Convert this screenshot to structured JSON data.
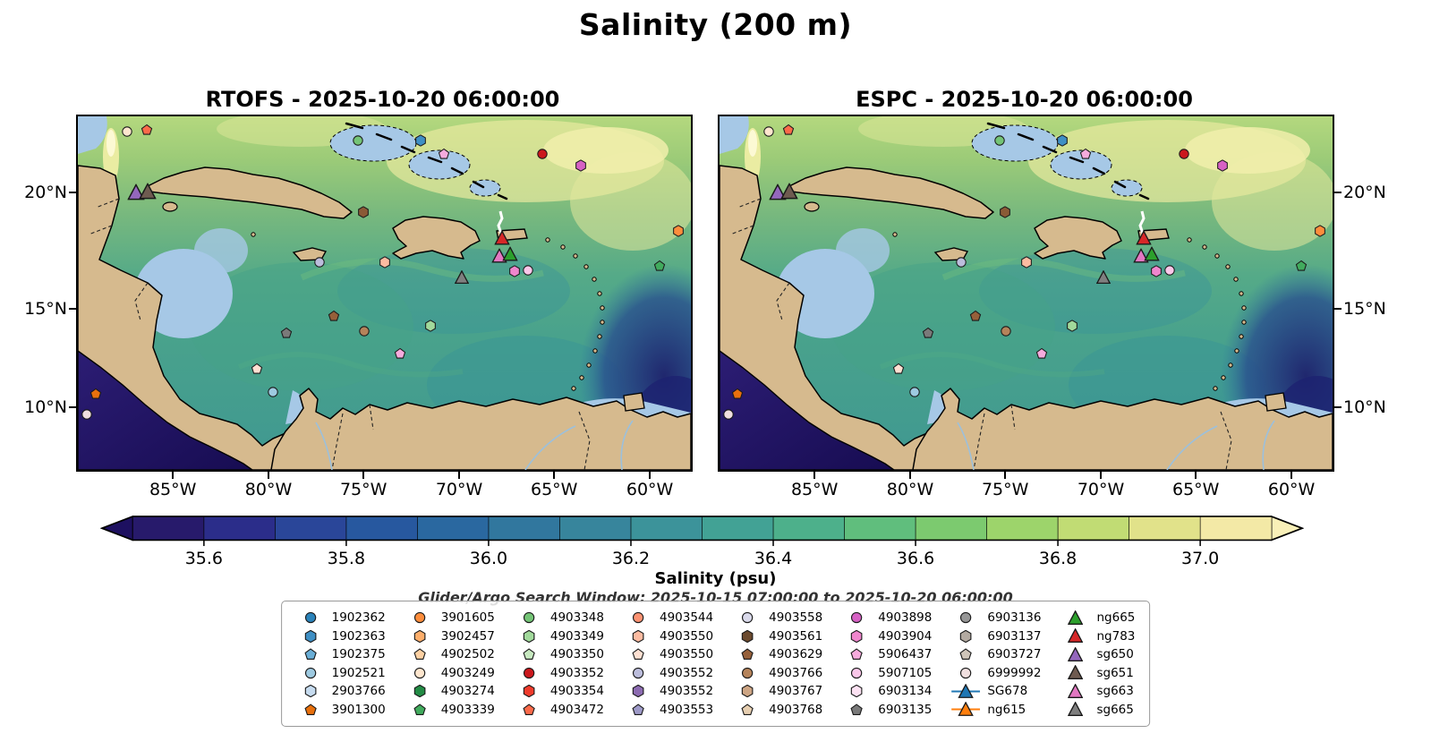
{
  "title": "Salinity (200 m)",
  "panels": [
    {
      "id": "rtofs",
      "title": "RTOFS - 2025-10-20 06:00:00"
    },
    {
      "id": "espc",
      "title": "ESPC - 2025-10-20 06:00:00"
    }
  ],
  "axes": {
    "lat_ticks": [
      {
        "label": "20°N",
        "pos": 21.5
      },
      {
        "label": "15°N",
        "pos": 54.4
      },
      {
        "label": "10°N",
        "pos": 82.3
      }
    ],
    "lon_ticks": [
      {
        "label": "85°W",
        "pos": 15.5
      },
      {
        "label": "80°W",
        "pos": 31.1
      },
      {
        "label": "75°W",
        "pos": 46.6
      },
      {
        "label": "70°W",
        "pos": 62.2
      },
      {
        "label": "65°W",
        "pos": 77.7
      },
      {
        "label": "60°W",
        "pos": 93.3
      }
    ]
  },
  "colorbar": {
    "label": "Salinity (psu)",
    "min": 35.5,
    "max": 37.1,
    "tick_values": [
      35.6,
      35.8,
      36.0,
      36.2,
      36.4,
      36.6,
      36.8,
      37.0
    ],
    "tick_labels": [
      "35.6",
      "35.8",
      "36.0",
      "36.2",
      "36.4",
      "36.6",
      "36.8",
      "37.0"
    ],
    "segment_colors": [
      "#271a6b",
      "#2b2d8a",
      "#2a4699",
      "#27589f",
      "#2a68a0",
      "#31779e",
      "#37859c",
      "#3c939a",
      "#42a295",
      "#4db08b",
      "#60be7d",
      "#7cca6f",
      "#9dd46b",
      "#c1dc74",
      "#e1e28a",
      "#f3e9a6"
    ],
    "under_color": "#1d1060",
    "over_color": "#f9f0b8"
  },
  "search_window": "Glider/Argo Search Window: 2025-10-15 07:00:00 to 2025-10-20 06:00:00",
  "legend": {
    "entries": [
      {
        "label": "1902362",
        "shape": "circle",
        "color": "#2b83ba"
      },
      {
        "label": "1902363",
        "shape": "hexagon",
        "color": "#3f8fc4"
      },
      {
        "label": "1902375",
        "shape": "pentagon",
        "color": "#6aaed6"
      },
      {
        "label": "1902521",
        "shape": "circle",
        "color": "#9ecae1"
      },
      {
        "label": "2903766",
        "shape": "hexagon",
        "color": "#c6dbef"
      },
      {
        "label": "3901300",
        "shape": "pentagon",
        "color": "#e8700d"
      },
      {
        "label": "3901605",
        "shape": "circle",
        "color": "#fd8d3c"
      },
      {
        "label": "3902457",
        "shape": "hexagon",
        "color": "#fdae6b"
      },
      {
        "label": "4902502",
        "shape": "pentagon",
        "color": "#fdd0a2"
      },
      {
        "label": "4903249",
        "shape": "circle",
        "color": "#fee6ce"
      },
      {
        "label": "4903274",
        "shape": "hexagon",
        "color": "#238b45"
      },
      {
        "label": "4903339",
        "shape": "pentagon",
        "color": "#41ab5d"
      },
      {
        "label": "4903348",
        "shape": "circle",
        "color": "#74c476"
      },
      {
        "label": "4903349",
        "shape": "hexagon",
        "color": "#a1d99b"
      },
      {
        "label": "4903350",
        "shape": "pentagon",
        "color": "#c7e9c0"
      },
      {
        "label": "4903352",
        "shape": "circle",
        "color": "#cb181d"
      },
      {
        "label": "4903354",
        "shape": "hexagon",
        "color": "#ef3b2c"
      },
      {
        "label": "4903472",
        "shape": "pentagon",
        "color": "#fb6a4a"
      },
      {
        "label": "4903544",
        "shape": "circle",
        "color": "#fc9272"
      },
      {
        "label": "4903550",
        "shape": "hexagon",
        "color": "#fcbba1"
      },
      {
        "label": "4903550",
        "shape": "pentagon",
        "color": "#fee0d2"
      },
      {
        "label": "4903552",
        "shape": "circle",
        "color": "#bcbddc"
      },
      {
        "label": "4903552",
        "shape": "hexagon",
        "color": "#8c6bb1"
      },
      {
        "label": "4903553",
        "shape": "pentagon",
        "color": "#9e9ac8"
      },
      {
        "label": "4903558",
        "shape": "circle",
        "color": "#dadaeb"
      },
      {
        "label": "4903561",
        "shape": "hexagon",
        "color": "#6b4a2e"
      },
      {
        "label": "4903629",
        "shape": "pentagon",
        "color": "#96603a"
      },
      {
        "label": "4903766",
        "shape": "circle",
        "color": "#b5835a"
      },
      {
        "label": "4903767",
        "shape": "hexagon",
        "color": "#cda584"
      },
      {
        "label": "4903768",
        "shape": "pentagon",
        "color": "#e7cfb1"
      },
      {
        "label": "4903898",
        "shape": "circle",
        "color": "#d661c4"
      },
      {
        "label": "4903904",
        "shape": "hexagon",
        "color": "#ef86cd"
      },
      {
        "label": "5906437",
        "shape": "pentagon",
        "color": "#f6abdd"
      },
      {
        "label": "5907105",
        "shape": "circle",
        "color": "#fac7e9"
      },
      {
        "label": "6903134",
        "shape": "hexagon",
        "color": "#fde2f3"
      },
      {
        "label": "6903135",
        "shape": "pentagon",
        "color": "#7a7a7a"
      },
      {
        "label": "6903136",
        "shape": "circle",
        "color": "#969696"
      },
      {
        "label": "6903137",
        "shape": "hexagon",
        "color": "#b3aaa1"
      },
      {
        "label": "6903727",
        "shape": "pentagon",
        "color": "#cfc5b9"
      },
      {
        "label": "6999992",
        "shape": "circle",
        "color": "#f0dfdf"
      },
      {
        "label": "SG678",
        "shape": "triangle",
        "color": "#1f77b4",
        "line": true
      },
      {
        "label": "ng615",
        "shape": "triangle",
        "color": "#ff7f0e",
        "line": true
      },
      {
        "label": "ng665",
        "shape": "triangle",
        "color": "#2ca02c"
      },
      {
        "label": "ng783",
        "shape": "triangle",
        "color": "#d62728"
      },
      {
        "label": "sg650",
        "shape": "triangle",
        "color": "#9467bd"
      },
      {
        "label": "sg651",
        "shape": "triangle",
        "color": "#6f5b50"
      },
      {
        "label": "sg663",
        "shape": "triangle",
        "color": "#e377c2"
      },
      {
        "label": "sg665",
        "shape": "triangle",
        "color": "#7f7f7f"
      }
    ]
  },
  "map_markers": [
    {
      "x": 8.0,
      "y": 4.3,
      "shape": "circle",
      "color": "#fee6ce",
      "size": 13
    },
    {
      "x": 11.2,
      "y": 3.8,
      "shape": "pentagon",
      "color": "#fb6a4a",
      "size": 13
    },
    {
      "x": 9.5,
      "y": 21.5,
      "shape": "triangle",
      "color": "#9467bd",
      "size": 19,
      "id": "sg650"
    },
    {
      "x": 11.4,
      "y": 21.3,
      "shape": "triangle",
      "color": "#6f5b50",
      "size": 19,
      "id": "sg651"
    },
    {
      "x": 45.7,
      "y": 6.8,
      "shape": "circle",
      "color": "#74c476",
      "size": 13
    },
    {
      "x": 55.9,
      "y": 6.8,
      "shape": "hexagon",
      "color": "#3f8fc4",
      "size": 13
    },
    {
      "x": 59.7,
      "y": 10.6,
      "shape": "pentagon",
      "color": "#f6abdd",
      "size": 13
    },
    {
      "x": 75.8,
      "y": 10.6,
      "shape": "circle",
      "color": "#cb181d",
      "size": 13
    },
    {
      "x": 82.0,
      "y": 13.9,
      "shape": "hexagon",
      "color": "#d661c4",
      "size": 13
    },
    {
      "x": 46.6,
      "y": 27.1,
      "shape": "hexagon",
      "color": "#8a5a36",
      "size": 13
    },
    {
      "x": 98.0,
      "y": 32.4,
      "shape": "hexagon",
      "color": "#fd8d3c",
      "size": 13
    },
    {
      "x": 69.2,
      "y": 34.4,
      "shape": "triangle",
      "color": "#d62728",
      "size": 17,
      "id": "ng783"
    },
    {
      "x": 68.7,
      "y": 39.5,
      "shape": "triangle",
      "color": "#e377c2",
      "size": 17,
      "id": "sg663"
    },
    {
      "x": 70.5,
      "y": 39.0,
      "shape": "triangle",
      "color": "#2ca02c",
      "size": 17,
      "id": "ng665"
    },
    {
      "x": 71.2,
      "y": 43.8,
      "shape": "hexagon",
      "color": "#ef86cd",
      "size": 13
    },
    {
      "x": 73.4,
      "y": 43.5,
      "shape": "circle",
      "color": "#fac7e9",
      "size": 13
    },
    {
      "x": 62.6,
      "y": 45.6,
      "shape": "triangle",
      "color": "#7f7f7f",
      "size": 16,
      "id": "sg665"
    },
    {
      "x": 39.4,
      "y": 41.3,
      "shape": "circle",
      "color": "#bcbddc",
      "size": 13
    },
    {
      "x": 50.1,
      "y": 41.3,
      "shape": "hexagon",
      "color": "#fcbba1",
      "size": 13
    },
    {
      "x": 94.9,
      "y": 42.3,
      "shape": "pentagon",
      "color": "#41ab5d",
      "size": 13
    },
    {
      "x": 41.8,
      "y": 56.5,
      "shape": "pentagon",
      "color": "#96603a",
      "size": 13
    },
    {
      "x": 34.0,
      "y": 61.3,
      "shape": "pentagon",
      "color": "#7a7a7a",
      "size": 13
    },
    {
      "x": 46.7,
      "y": 60.8,
      "shape": "circle",
      "color": "#b5835a",
      "size": 13
    },
    {
      "x": 57.5,
      "y": 59.2,
      "shape": "hexagon",
      "color": "#a1d99b",
      "size": 13
    },
    {
      "x": 52.6,
      "y": 67.1,
      "shape": "pentagon",
      "color": "#f6abdd",
      "size": 13
    },
    {
      "x": 29.2,
      "y": 71.4,
      "shape": "pentagon",
      "color": "#fee0d2",
      "size": 13
    },
    {
      "x": 31.8,
      "y": 78.0,
      "shape": "circle",
      "color": "#9ecae1",
      "size": 13
    },
    {
      "x": 2.9,
      "y": 78.5,
      "shape": "pentagon",
      "color": "#e8700d",
      "size": 13
    },
    {
      "x": 1.5,
      "y": 84.3,
      "shape": "circle",
      "color": "#f0dfdf",
      "size": 13
    }
  ],
  "chart_data": {
    "type": "heatmap",
    "title": "Salinity (200 m)",
    "panels": [
      "RTOFS - 2025-10-20 06:00:00",
      "ESPC - 2025-10-20 06:00:00"
    ],
    "variable": "Salinity (psu)",
    "colorbar_range": [
      35.5,
      37.1
    ],
    "colorbar_ticks": [
      35.6,
      35.8,
      36.0,
      36.2,
      36.4,
      36.6,
      36.8,
      37.0
    ],
    "x_tick_labels": [
      "85°W",
      "80°W",
      "75°W",
      "70°W",
      "65°W",
      "60°W"
    ],
    "y_tick_labels": [
      "20°N",
      "15°N",
      "10°N"
    ],
    "annotation": "Glider/Argo Search Window: 2025-10-15 07:00:00 to 2025-10-20 06:00:00",
    "platforms": [
      "1902362",
      "1902363",
      "1902375",
      "1902521",
      "2903766",
      "3901300",
      "3901605",
      "3902457",
      "4902502",
      "4903249",
      "4903274",
      "4903339",
      "4903348",
      "4903349",
      "4903350",
      "4903352",
      "4903354",
      "4903472",
      "4903544",
      "4903550",
      "4903550",
      "4903552",
      "4903552",
      "4903553",
      "4903558",
      "4903561",
      "4903629",
      "4903766",
      "4903767",
      "4903768",
      "4903898",
      "4903904",
      "5906437",
      "5907105",
      "6903134",
      "6903135",
      "6903136",
      "6903137",
      "6903727",
      "6999992",
      "SG678",
      "ng615",
      "ng665",
      "ng783",
      "sg650",
      "sg651",
      "sg663",
      "sg665"
    ]
  }
}
